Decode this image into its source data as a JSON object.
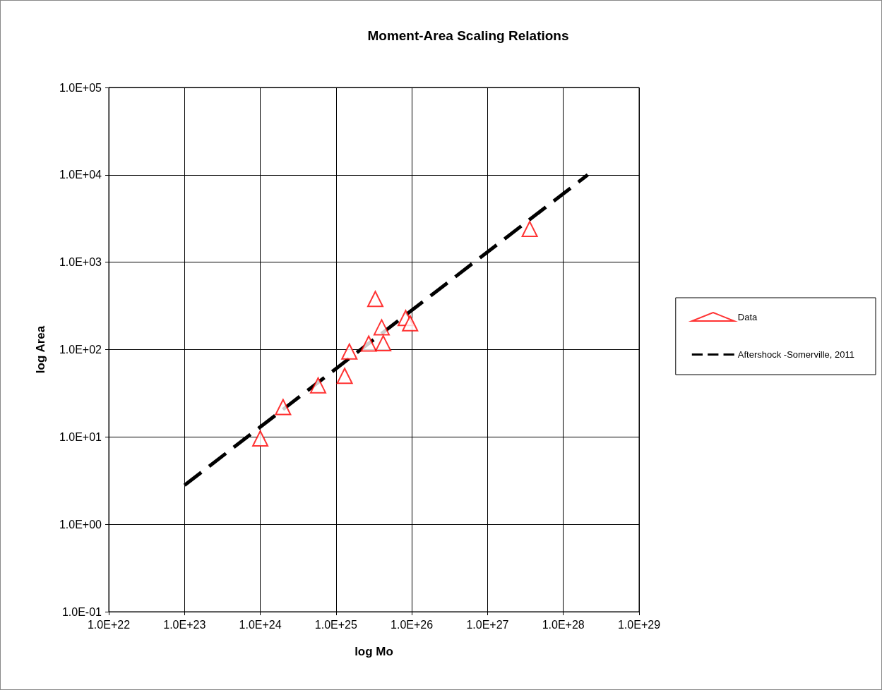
{
  "chart_data": {
    "type": "scatter",
    "title": "Moment-Area Scaling Relations",
    "xlabel": "log Mo",
    "ylabel": "log Area",
    "log": "xy",
    "grid": true,
    "legend": "right",
    "marker": "triangle",
    "xlim": [
      1e+22,
      1e+29
    ],
    "ylim": [
      0.1,
      100000
    ],
    "xticks": [
      {
        "value": 1e+22,
        "label": "1.0E+22"
      },
      {
        "value": 1e+23,
        "label": "1.0E+23"
      },
      {
        "value": 1e+24,
        "label": "1.0E+24"
      },
      {
        "value": 1e+25,
        "label": "1.0E+25"
      },
      {
        "value": 1e+26,
        "label": "1.0E+26"
      },
      {
        "value": 1e+27,
        "label": "1.0E+27"
      },
      {
        "value": 1e+28,
        "label": "1.0E+28"
      },
      {
        "value": 1e+29,
        "label": "1.0E+29"
      }
    ],
    "yticks": [
      {
        "value": 0.1,
        "label": "1.0E-01"
      },
      {
        "value": 1,
        "label": "1.0E+00"
      },
      {
        "value": 10,
        "label": "1.0E+01"
      },
      {
        "value": 100,
        "label": "1.0E+02"
      },
      {
        "value": 1000,
        "label": "1.0E+03"
      },
      {
        "value": 10000,
        "label": "1.0E+04"
      },
      {
        "value": 100000,
        "label": "1.0E+05"
      }
    ],
    "series": [
      {
        "name": "Data",
        "color": "#ff0000",
        "x": [
          1e+24,
          2e+24,
          5.8e+24,
          1.3e+25,
          1.5e+25,
          2.7e+25,
          3.3e+25,
          4e+25,
          4.2e+25,
          8.3e+25,
          9.5e+25,
          3.6e+27
        ],
        "values": [
          9.6,
          22,
          39,
          50,
          95,
          117,
          380,
          180,
          118,
          230,
          200,
          2400
        ]
      },
      {
        "name": "Aftershock -Somerville, 2011",
        "type": "line",
        "marker": "none",
        "line_style": "dashed",
        "color": "#000000",
        "x": [
          1e+23,
          2.1e+28
        ],
        "values": [
          2.8,
          10000
        ]
      }
    ]
  }
}
